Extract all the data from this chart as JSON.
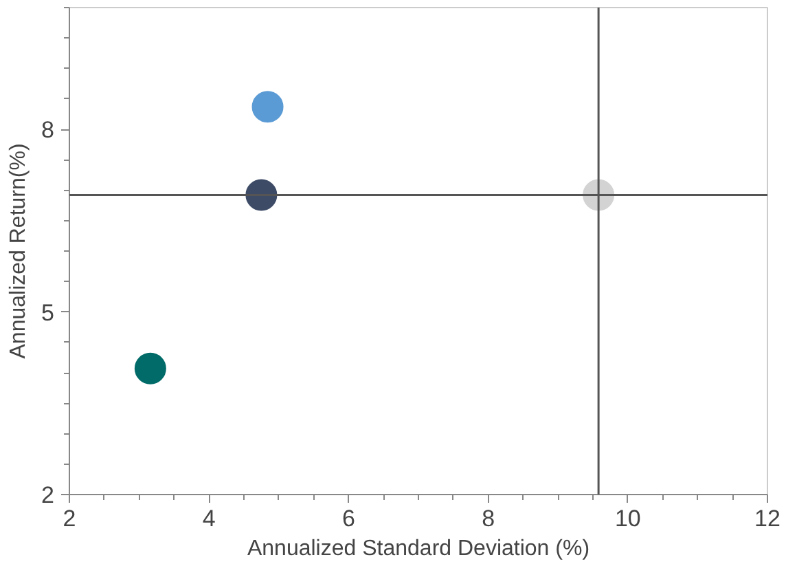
{
  "chart_data": {
    "type": "scatter",
    "xlabel": "Annualized Standard Deviation (%)",
    "ylabel": "Annualized Return(%)",
    "xlim": [
      2,
      12
    ],
    "ylim": [
      2,
      10
    ],
    "xticks": [
      2,
      4,
      6,
      8,
      10,
      12
    ],
    "yticks": [
      2,
      5,
      8
    ],
    "grid": false,
    "marker": "circle",
    "series": [
      {
        "color": "#5b9bd5",
        "x": [
          4.84
        ],
        "values": [
          8.37
        ]
      },
      {
        "color": "#3d4b66",
        "x": [
          4.75
        ],
        "values": [
          6.92
        ]
      },
      {
        "color": "#d3d3d3",
        "x": [
          9.58
        ],
        "values": [
          6.92
        ]
      },
      {
        "color": "#006b68",
        "x": [
          3.16
        ],
        "values": [
          4.07
        ]
      }
    ],
    "ref_lines": [
      {
        "axis": "x",
        "value": 9.58,
        "color": "#555555"
      },
      {
        "axis": "y",
        "value": 6.92,
        "color": "#555555"
      }
    ]
  }
}
